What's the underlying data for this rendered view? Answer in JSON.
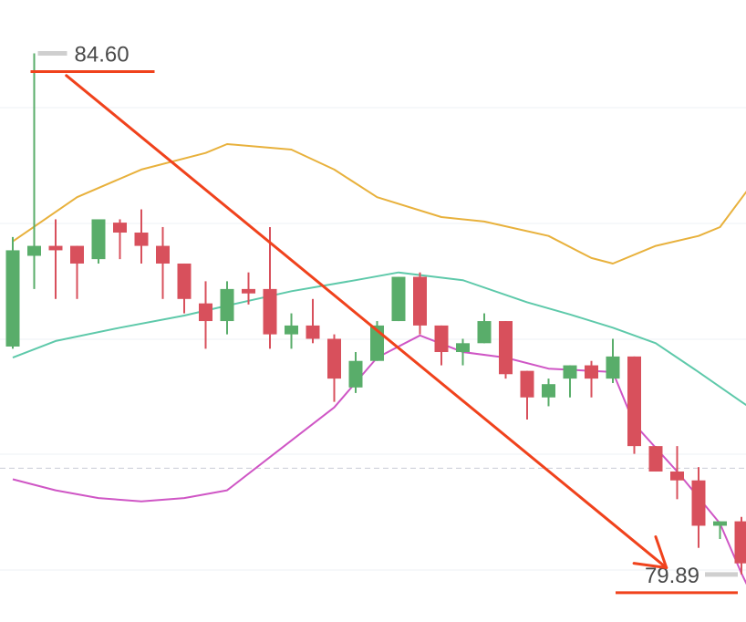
{
  "chart_data": {
    "type": "candlestick",
    "ylim": [
      79.6,
      85.0
    ],
    "ref_line": 80.85,
    "candles": [
      {
        "o": 81.95,
        "h": 82.94,
        "l": 81.93,
        "c": 82.82
      },
      {
        "o": 82.77,
        "h": 84.6,
        "l": 82.47,
        "c": 82.86
      },
      {
        "o": 82.86,
        "h": 83.1,
        "l": 82.38,
        "c": 82.82
      },
      {
        "o": 82.86,
        "h": 82.86,
        "l": 82.38,
        "c": 82.7
      },
      {
        "o": 82.74,
        "h": 83.07,
        "l": 82.7,
        "c": 83.1
      },
      {
        "o": 83.07,
        "h": 83.1,
        "l": 82.74,
        "c": 82.98
      },
      {
        "o": 82.98,
        "h": 83.19,
        "l": 82.7,
        "c": 82.86
      },
      {
        "o": 82.86,
        "h": 83.03,
        "l": 82.38,
        "c": 82.7
      },
      {
        "o": 82.7,
        "h": 82.7,
        "l": 82.25,
        "c": 82.38
      },
      {
        "o": 82.34,
        "h": 82.54,
        "l": 81.93,
        "c": 82.18
      },
      {
        "o": 82.18,
        "h": 82.54,
        "l": 82.06,
        "c": 82.47
      },
      {
        "o": 82.47,
        "h": 82.62,
        "l": 82.33,
        "c": 82.43
      },
      {
        "o": 82.47,
        "h": 83.03,
        "l": 81.93,
        "c": 82.06
      },
      {
        "o": 82.06,
        "h": 82.25,
        "l": 81.93,
        "c": 82.14
      },
      {
        "o": 82.14,
        "h": 82.38,
        "l": 81.98,
        "c": 82.02
      },
      {
        "o": 82.02,
        "h": 82.06,
        "l": 81.45,
        "c": 81.66
      },
      {
        "o": 81.58,
        "h": 81.9,
        "l": 81.53,
        "c": 81.82
      },
      {
        "o": 81.82,
        "h": 82.18,
        "l": 81.82,
        "c": 82.14
      },
      {
        "o": 82.18,
        "h": 82.58,
        "l": 82.18,
        "c": 82.58
      },
      {
        "o": 82.58,
        "h": 82.62,
        "l": 82.06,
        "c": 82.14
      },
      {
        "o": 82.14,
        "h": 82.14,
        "l": 81.78,
        "c": 81.9
      },
      {
        "o": 81.9,
        "h": 82.02,
        "l": 81.78,
        "c": 81.98
      },
      {
        "o": 81.98,
        "h": 82.25,
        "l": 81.98,
        "c": 82.18
      },
      {
        "o": 82.18,
        "h": 82.18,
        "l": 81.66,
        "c": 81.7
      },
      {
        "o": 81.73,
        "h": 81.73,
        "l": 81.29,
        "c": 81.49
      },
      {
        "o": 81.49,
        "h": 81.66,
        "l": 81.41,
        "c": 81.61
      },
      {
        "o": 81.66,
        "h": 81.78,
        "l": 81.49,
        "c": 81.78
      },
      {
        "o": 81.78,
        "h": 81.82,
        "l": 81.49,
        "c": 81.66
      },
      {
        "o": 81.66,
        "h": 82.02,
        "l": 81.62,
        "c": 81.86
      },
      {
        "o": 81.86,
        "h": 81.86,
        "l": 80.98,
        "c": 81.05
      },
      {
        "o": 81.05,
        "h": 81.05,
        "l": 80.82,
        "c": 80.82
      },
      {
        "o": 80.82,
        "h": 81.05,
        "l": 80.57,
        "c": 80.74
      },
      {
        "o": 80.74,
        "h": 80.86,
        "l": 80.13,
        "c": 80.33
      },
      {
        "o": 80.33,
        "h": 80.37,
        "l": 80.21,
        "c": 80.37
      },
      {
        "o": 80.37,
        "h": 80.41,
        "l": 79.89,
        "c": 79.99
      }
    ],
    "bollinger": {
      "upper": {
        "color": "#e8b13c",
        "points": [
          [
            0,
            82.9
          ],
          [
            3,
            83.3
          ],
          [
            6,
            83.55
          ],
          [
            9,
            83.7
          ],
          [
            10,
            83.78
          ],
          [
            13,
            83.73
          ],
          [
            15,
            83.55
          ],
          [
            17,
            83.3
          ],
          [
            20,
            83.12
          ],
          [
            22,
            83.08
          ],
          [
            25,
            82.95
          ],
          [
            27,
            82.75
          ],
          [
            28,
            82.7
          ],
          [
            30,
            82.86
          ],
          [
            32,
            82.95
          ],
          [
            33,
            83.03
          ],
          [
            35,
            83.55
          ]
        ]
      },
      "middle": {
        "color": "#5ec9aa",
        "points": [
          [
            0,
            81.85
          ],
          [
            2,
            82.0
          ],
          [
            5,
            82.12
          ],
          [
            8,
            82.23
          ],
          [
            10,
            82.32
          ],
          [
            13,
            82.45
          ],
          [
            16,
            82.55
          ],
          [
            18,
            82.62
          ],
          [
            21,
            82.55
          ],
          [
            24,
            82.35
          ],
          [
            26,
            82.24
          ],
          [
            28,
            82.12
          ],
          [
            30,
            81.98
          ],
          [
            32,
            81.72
          ],
          [
            34,
            81.45
          ],
          [
            35,
            81.32
          ]
        ]
      },
      "lower": {
        "color": "#cf56c5",
        "points": [
          [
            0,
            80.75
          ],
          [
            2,
            80.65
          ],
          [
            4,
            80.58
          ],
          [
            6,
            80.55
          ],
          [
            8,
            80.58
          ],
          [
            10,
            80.65
          ],
          [
            12,
            80.95
          ],
          [
            15,
            81.4
          ],
          [
            17,
            81.85
          ],
          [
            19,
            82.05
          ],
          [
            21,
            81.9
          ],
          [
            23,
            81.85
          ],
          [
            25,
            81.75
          ],
          [
            28,
            81.72
          ],
          [
            29,
            81.25
          ],
          [
            31,
            80.82
          ],
          [
            33,
            80.35
          ],
          [
            34,
            79.9
          ],
          [
            35,
            79.5
          ]
        ]
      }
    },
    "high_label": "84.60",
    "low_label": "79.89",
    "trend_arrow": {
      "color": "#f0421c",
      "from": [
        2.5,
        84.4
      ],
      "to": [
        30.5,
        79.95
      ]
    }
  }
}
